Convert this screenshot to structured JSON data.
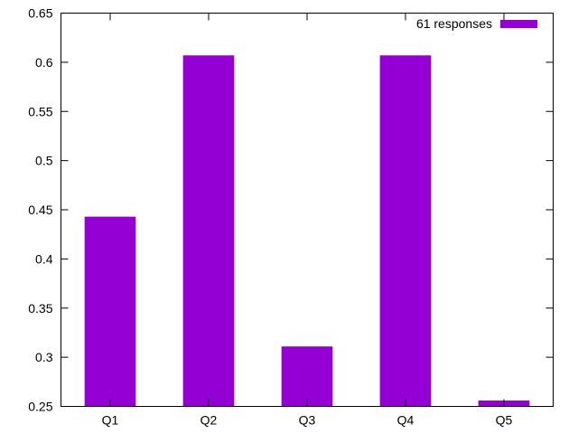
{
  "chart_data": {
    "type": "bar",
    "categories": [
      "Q1",
      "Q2",
      "Q3",
      "Q4",
      "Q5"
    ],
    "series": [
      {
        "name": "61 responses",
        "color": "#9400d3",
        "values": [
          0.443,
          0.607,
          0.311,
          0.607,
          0.256
        ]
      }
    ],
    "ylim": [
      0.25,
      0.65
    ],
    "yticks": [
      "0.25",
      "0.3",
      "0.35",
      "0.4",
      "0.45",
      "0.5",
      "0.55",
      "0.6",
      "0.65"
    ],
    "grid": false,
    "legend_position": "top-right"
  }
}
